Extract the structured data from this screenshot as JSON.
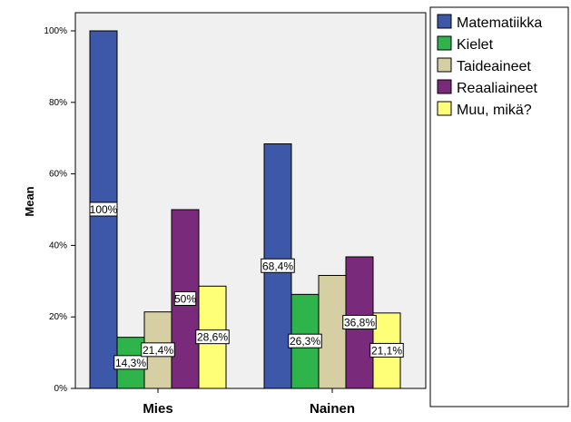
{
  "chart_data": {
    "type": "bar",
    "ylabel": "Mean",
    "ylim": [
      0,
      100
    ],
    "yticks": [
      "0%",
      "20%",
      "40%",
      "60%",
      "80%",
      "100%"
    ],
    "categories": [
      "Mies",
      "Nainen"
    ],
    "legend_position": "right",
    "grid": false,
    "series": [
      {
        "name": "Matematiikka",
        "color": "#3d58a8",
        "values": [
          100,
          68.4
        ],
        "labels": [
          "100%",
          "68,4%"
        ]
      },
      {
        "name": "Kielet",
        "color": "#2fb34b",
        "values": [
          14.3,
          26.3
        ],
        "labels": [
          "14,3%",
          "26,3%"
        ]
      },
      {
        "name": "Taideaineet",
        "color": "#d6cfa4",
        "values": [
          21.4,
          31.6
        ],
        "labels": [
          "21,4%",
          ""
        ]
      },
      {
        "name": "Reaaliaineet",
        "color": "#7a2a7a",
        "values": [
          50,
          36.8
        ],
        "labels": [
          "50%",
          "36,8%"
        ]
      },
      {
        "name": "Muu, mikä?",
        "color": "#ffff77",
        "values": [
          28.6,
          21.1
        ],
        "labels": [
          "28,6%",
          "21,1%"
        ]
      }
    ]
  }
}
